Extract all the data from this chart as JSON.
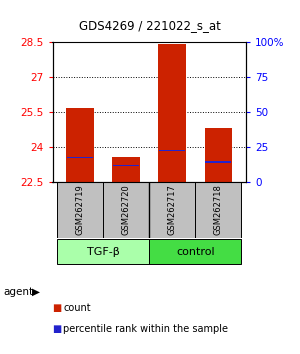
{
  "title": "GDS4269 / 221022_s_at",
  "samples": [
    "GSM262719",
    "GSM262720",
    "GSM262717",
    "GSM262718"
  ],
  "red_values": [
    25.7,
    23.55,
    28.45,
    24.8
  ],
  "blue_values": [
    23.55,
    23.2,
    23.85,
    23.35
  ],
  "bar_bottom": 22.5,
  "ylim_left": [
    22.5,
    28.5
  ],
  "ylim_right": [
    0,
    100
  ],
  "yticks_left": [
    22.5,
    24.0,
    25.5,
    27.0,
    28.5
  ],
  "ytick_labels_left": [
    "22.5",
    "24",
    "25.5",
    "27",
    "28.5"
  ],
  "yticks_right": [
    0,
    25,
    50,
    75,
    100
  ],
  "ytick_labels_right": [
    "0",
    "25",
    "50",
    "75",
    "100%"
  ],
  "grid_yticks": [
    24.0,
    25.5,
    27.0
  ],
  "bar_color": "#CC2200",
  "marker_color": "#2222CC",
  "sample_box_color": "#C0C0C0",
  "tgfb_color": "#AAFFAA",
  "control_color": "#44DD44",
  "bar_width": 0.6,
  "title_fontsize": 8.5
}
